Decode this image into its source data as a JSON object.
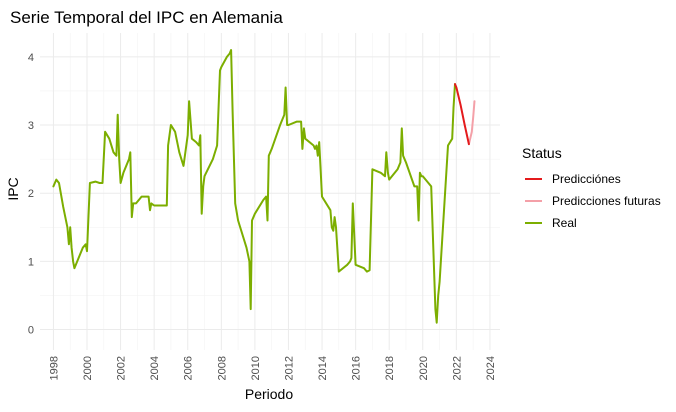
{
  "chart_data": {
    "type": "line",
    "title": "Serie Temporal del IPC en Alemania",
    "xlabel": "Periodo",
    "ylabel": "IPC",
    "xlim": [
      1997.2,
      2024.6
    ],
    "ylim": [
      -0.3,
      4.35
    ],
    "x_ticks": [
      1998,
      2000,
      2002,
      2004,
      2006,
      2008,
      2010,
      2012,
      2014,
      2016,
      2018,
      2020,
      2022,
      2024
    ],
    "x_tick_labels": [
      "1998",
      "2000",
      "2002",
      "2004",
      "2006",
      "2008",
      "2010",
      "2012",
      "2014",
      "2016",
      "2018",
      "2020",
      "2022",
      "2024"
    ],
    "y_ticks": [
      0,
      1,
      2,
      3,
      4
    ],
    "y_tick_labels": [
      "0",
      "1",
      "2",
      "3",
      "4"
    ],
    "grid": true,
    "legend_position": "right",
    "legend_title": "Status",
    "series": [
      {
        "name": "Real",
        "color": "#7cae00",
        "x": [
          1998.0,
          1998.17,
          1998.33,
          1998.58,
          1998.83,
          1998.92,
          1999.0,
          1999.08,
          1999.17,
          1999.25,
          1999.5,
          1999.75,
          1999.92,
          2000.0,
          2000.17,
          2000.5,
          2000.75,
          2000.92,
          2001.08,
          2001.33,
          2001.58,
          2001.75,
          2001.83,
          2001.92,
          2002.0,
          2002.17,
          2002.5,
          2002.58,
          2002.67,
          2002.75,
          2002.92,
          2003.25,
          2003.67,
          2003.75,
          2003.83,
          2004.0,
          2004.5,
          2004.75,
          2004.83,
          2005.0,
          2005.25,
          2005.5,
          2005.75,
          2006.0,
          2006.08,
          2006.25,
          2006.5,
          2006.67,
          2006.75,
          2006.83,
          2006.92,
          2007.0,
          2007.5,
          2007.75,
          2007.92,
          2008.0,
          2008.33,
          2008.5,
          2008.58,
          2008.67,
          2008.83,
          2009.0,
          2009.5,
          2009.67,
          2009.75,
          2009.83,
          2010.0,
          2010.5,
          2010.67,
          2010.75,
          2010.83,
          2011.0,
          2011.5,
          2011.75,
          2011.83,
          2011.92,
          2012.0,
          2012.5,
          2012.75,
          2012.83,
          2012.92,
          2013.0,
          2013.5,
          2013.58,
          2013.67,
          2013.75,
          2013.83,
          2014.0,
          2014.5,
          2014.58,
          2014.67,
          2014.75,
          2014.83,
          2015.0,
          2015.5,
          2015.67,
          2015.75,
          2015.83,
          2016.0,
          2016.5,
          2016.67,
          2016.83,
          2017.0,
          2017.5,
          2017.75,
          2017.83,
          2017.92,
          2018.0,
          2018.5,
          2018.67,
          2018.75,
          2018.83,
          2019.0,
          2019.5,
          2019.67,
          2019.75,
          2019.83,
          2019.92,
          2020.0,
          2020.5,
          2020.75,
          2020.83,
          2020.92,
          2021.0,
          2021.5,
          2021.75,
          2021.83,
          2021.92
        ],
        "y": [
          2.1,
          2.2,
          2.15,
          1.8,
          1.5,
          1.25,
          1.5,
          1.2,
          1.0,
          0.9,
          1.05,
          1.2,
          1.25,
          1.15,
          2.15,
          2.17,
          2.15,
          2.15,
          2.9,
          2.8,
          2.6,
          2.55,
          3.15,
          2.5,
          2.15,
          2.3,
          2.5,
          2.6,
          1.65,
          1.85,
          1.85,
          1.95,
          1.95,
          1.75,
          1.85,
          1.82,
          1.82,
          1.82,
          2.7,
          3.0,
          2.9,
          2.6,
          2.4,
          2.85,
          3.35,
          2.8,
          2.75,
          2.7,
          2.85,
          1.7,
          2.1,
          2.25,
          2.5,
          2.7,
          3.8,
          3.85,
          4.0,
          4.05,
          4.1,
          3.2,
          1.85,
          1.6,
          1.2,
          1.0,
          0.3,
          1.6,
          1.7,
          1.9,
          1.95,
          1.6,
          2.55,
          2.65,
          3.0,
          3.15,
          3.55,
          3.0,
          3.0,
          3.05,
          3.05,
          2.65,
          2.95,
          2.8,
          2.7,
          2.65,
          2.7,
          2.55,
          2.75,
          1.95,
          1.75,
          1.5,
          1.45,
          1.65,
          1.5,
          0.85,
          0.95,
          1.0,
          1.05,
          1.85,
          0.95,
          0.9,
          0.85,
          0.87,
          2.35,
          2.3,
          2.25,
          2.6,
          2.3,
          2.2,
          2.35,
          2.45,
          2.95,
          2.55,
          2.45,
          2.1,
          2.1,
          1.6,
          2.3,
          2.25,
          2.25,
          2.1,
          0.3,
          0.1,
          0.5,
          0.7,
          2.7,
          2.8,
          3.25,
          3.6
        ]
      },
      {
        "name": "Predicciónes",
        "color": "#e41a1c",
        "x": [
          2021.92,
          2022.0,
          2022.25,
          2022.5,
          2022.75
        ],
        "y": [
          3.6,
          3.55,
          3.3,
          3.0,
          2.72
        ]
      },
      {
        "name": "Predicciones futuras",
        "color": "#f4a0a8",
        "x": [
          2022.75,
          2022.92,
          2023.0,
          2023.08
        ],
        "y": [
          2.72,
          2.9,
          3.1,
          3.35
        ]
      }
    ],
    "legend_order": [
      "Predicciónes",
      "Predicciones futuras",
      "Real"
    ]
  }
}
